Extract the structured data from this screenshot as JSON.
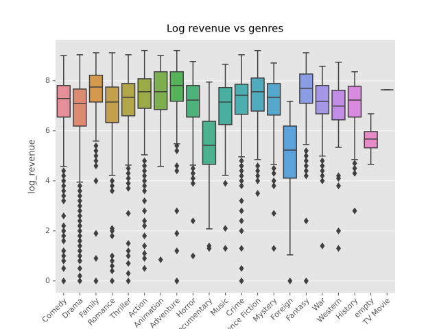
{
  "chart_data": {
    "type": "box",
    "title": "Log revenue vs genres",
    "y_label": "log_revenue",
    "categories": [
      "Comedy",
      "Drama",
      "Family",
      "Romance",
      "Thriller",
      "Action",
      "Animation",
      "Adventure",
      "Horror",
      "Documentary",
      "Music",
      "Crime",
      "Science Fiction",
      "Mystery",
      "Foreign",
      "Fantasy",
      "War",
      "Western",
      "History",
      "empty",
      "TV Movie"
    ],
    "colors": [
      "#e58f98",
      "#dc8b73",
      "#d69a4f",
      "#c4a04b",
      "#b3a54a",
      "#9aab48",
      "#7daf4e",
      "#57b35b",
      "#4db37b",
      "#4bb190",
      "#4aafa0",
      "#4caeae",
      "#4fabbd",
      "#55a8cc",
      "#5ca2dc",
      "#8a9ce4",
      "#a696e6",
      "#c28de4",
      "#d989dd",
      "#e58bc8",
      "#e78fb3"
    ],
    "boxes": [
      {
        "whislo": 4.58,
        "q1": 6.55,
        "med": 7.29,
        "q3": 7.81,
        "whishi": 9.01,
        "fliers": [
          4.4,
          4.2,
          4.0,
          3.8,
          3.6,
          3.4,
          3.2,
          2.6,
          2.2,
          2.0,
          1.8,
          1.6,
          1.2,
          1.0,
          0.8,
          0.5,
          0.0
        ]
      },
      {
        "whislo": 3.95,
        "q1": 6.19,
        "med": 7.1,
        "q3": 7.67,
        "whishi": 9.04,
        "fliers": [
          3.8,
          3.6,
          3.4,
          3.2,
          3.0,
          2.8,
          2.6,
          2.4,
          2.2,
          2.0,
          1.8,
          1.6,
          1.4,
          1.2,
          1.0,
          0.8,
          0.5,
          0.2,
          0.0
        ]
      },
      {
        "whislo": 5.59,
        "q1": 7.15,
        "med": 7.75,
        "q3": 8.22,
        "whishi": 9.12,
        "fliers": [
          5.4,
          5.2,
          5.0,
          4.8,
          4.6,
          4.0,
          1.9,
          0.9,
          0.0
        ]
      },
      {
        "whislo": 4.22,
        "q1": 6.33,
        "med": 7.15,
        "q3": 7.75,
        "whishi": 9.12,
        "fliers": [
          4.0,
          3.8,
          3.6,
          2.1,
          2.0,
          1.8,
          1.0,
          0.8,
          0.6,
          0.4,
          0.0
        ]
      },
      {
        "whislo": 4.63,
        "q1": 6.6,
        "med": 7.34,
        "q3": 7.89,
        "whishi": 9.04,
        "fliers": [
          4.5,
          4.3,
          4.1,
          3.9,
          3.7,
          2.7,
          1.5,
          1.2,
          1.0,
          0.7,
          0.3,
          0.0
        ]
      },
      {
        "whislo": 5.04,
        "q1": 6.9,
        "med": 7.56,
        "q3": 8.08,
        "whishi": 9.21,
        "fliers": [
          4.8,
          4.6,
          4.4,
          4.2,
          4.0,
          3.8,
          3.6,
          3.2,
          2.8,
          2.4,
          2.2,
          1.8,
          1.4,
          1.1,
          0.9,
          0.5
        ]
      },
      {
        "whislo": 4.58,
        "q1": 6.85,
        "med": 7.56,
        "q3": 8.36,
        "whishi": 9.01,
        "fliers": [
          0.85
        ]
      },
      {
        "whislo": 5.48,
        "q1": 7.18,
        "med": 7.81,
        "q3": 8.36,
        "whishi": 9.21,
        "fliers": [
          5.4,
          5.2,
          4.6,
          4.4,
          2.8,
          1.9,
          1.2,
          0.0
        ]
      },
      {
        "whislo": 4.63,
        "q1": 6.55,
        "med": 7.23,
        "q3": 7.81,
        "whishi": 8.77,
        "fliers": [
          4.5,
          4.3,
          4.1,
          3.9,
          2.4,
          1.0
        ]
      },
      {
        "whislo": 2.08,
        "q1": 4.66,
        "med": 5.42,
        "q3": 6.38,
        "whishi": 7.95,
        "fliers": [
          1.4,
          1.3
        ]
      },
      {
        "whislo": 4.22,
        "q1": 6.25,
        "med": 7.15,
        "q3": 7.73,
        "whishi": 8.66,
        "fliers": [
          3.9,
          2.1,
          1.3
        ]
      },
      {
        "whislo": 4.96,
        "q1": 6.66,
        "med": 7.42,
        "q3": 7.86,
        "whishi": 9.04,
        "fliers": [
          4.8,
          4.6,
          4.4,
          4.2,
          4.0,
          3.8,
          3.2,
          2.8,
          2.4,
          2.0,
          1.3,
          0.5,
          0.0
        ]
      },
      {
        "whislo": 4.85,
        "q1": 6.79,
        "med": 7.56,
        "q3": 8.11,
        "whishi": 9.21,
        "fliers": [
          4.6,
          4.4,
          4.2,
          4.0,
          3.5
        ]
      },
      {
        "whislo": 4.66,
        "q1": 6.63,
        "med": 7.34,
        "q3": 7.89,
        "whishi": 8.71,
        "fliers": [
          4.5,
          4.3,
          4.0,
          3.8,
          2.7,
          1.3
        ]
      },
      {
        "whislo": 1.04,
        "q1": 4.11,
        "med": 5.23,
        "q3": 6.19,
        "whishi": 7.18,
        "fliers": [
          0.0
        ]
      },
      {
        "whislo": 5.45,
        "q1": 7.1,
        "med": 7.7,
        "q3": 8.27,
        "whishi": 9.12,
        "fliers": [
          5.2,
          5.0,
          4.8,
          4.6,
          4.4,
          4.2,
          2.4,
          0.0
        ]
      },
      {
        "whislo": 4.99,
        "q1": 6.68,
        "med": 7.18,
        "q3": 7.81,
        "whishi": 8.58,
        "fliers": [
          4.8,
          4.6,
          4.4,
          4.2,
          4.0,
          1.4
        ]
      },
      {
        "whislo": 5.34,
        "q1": 6.44,
        "med": 6.99,
        "q3": 7.62,
        "whishi": 8.74,
        "fliers": [
          4.2,
          4.1,
          3.8,
          2.0,
          1.3
        ]
      },
      {
        "whislo": 4.85,
        "q1": 6.55,
        "med": 7.23,
        "q3": 7.78,
        "whishi": 8.36,
        "fliers": [
          4.7,
          4.5,
          4.3,
          2.8
        ]
      },
      {
        "whislo": 4.66,
        "q1": 5.32,
        "med": 5.67,
        "q3": 5.97,
        "whishi": 6.68,
        "fliers": []
      },
      {
        "whislo": 7.64,
        "q1": 7.64,
        "med": 7.64,
        "q3": 7.64,
        "whishi": 7.64,
        "fliers": []
      }
    ],
    "ylim": [
      -0.47,
      9.64
    ],
    "yticks": [
      0,
      2,
      4,
      6,
      8
    ],
    "grid": true
  }
}
